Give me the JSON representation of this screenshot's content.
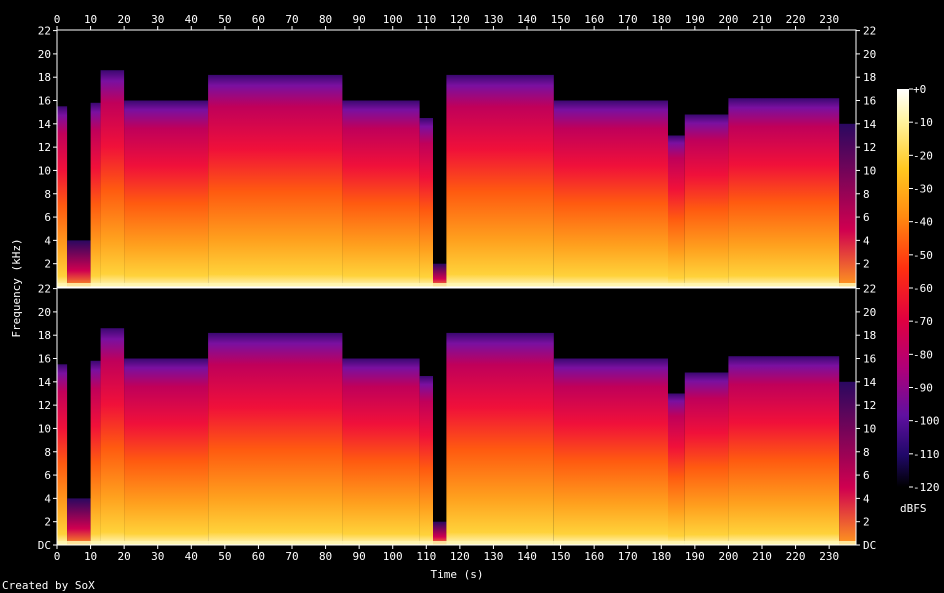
{
  "chart_data": {
    "type": "heatmap",
    "xlabel": "Time (s)",
    "ylabel": "Frequency (kHz)",
    "x_ticks": [
      0,
      10,
      20,
      30,
      40,
      50,
      60,
      70,
      80,
      90,
      100,
      110,
      120,
      130,
      140,
      150,
      160,
      170,
      180,
      190,
      200,
      210,
      220,
      230
    ],
    "xlim": [
      0,
      238
    ],
    "y_ticks": [
      {
        "value": 0,
        "label": "DC"
      },
      {
        "value": 2,
        "label": "2"
      },
      {
        "value": 4,
        "label": "4"
      },
      {
        "value": 6,
        "label": "6"
      },
      {
        "value": 8,
        "label": "8"
      },
      {
        "value": 10,
        "label": "10"
      },
      {
        "value": 12,
        "label": "12"
      },
      {
        "value": 14,
        "label": "14"
      },
      {
        "value": 16,
        "label": "16"
      },
      {
        "value": 18,
        "label": "18"
      },
      {
        "value": 20,
        "label": "20"
      },
      {
        "value": 22,
        "label": "22"
      }
    ],
    "ylim": [
      0,
      22.05
    ],
    "channels": 2,
    "colorbar": {
      "label": "dBFS",
      "ticks": [
        "+0",
        "-10",
        "-20",
        "-30",
        "-40",
        "-50",
        "-60",
        "-70",
        "-80",
        "-90",
        "-100",
        "-110",
        "-120"
      ],
      "range": [
        -120,
        0
      ]
    },
    "segments": [
      {
        "start": 0,
        "end": 3,
        "cutoff_khz": 15.5
      },
      {
        "start": 3,
        "end": 10,
        "cutoff_khz": 4.0,
        "quiet": true
      },
      {
        "start": 10,
        "end": 13,
        "cutoff_khz": 15.8
      },
      {
        "start": 13,
        "end": 20,
        "cutoff_khz": 18.6
      },
      {
        "start": 20,
        "end": 45,
        "cutoff_khz": 16.0
      },
      {
        "start": 45,
        "end": 85,
        "cutoff_khz": 18.2
      },
      {
        "start": 85,
        "end": 108,
        "cutoff_khz": 16.0
      },
      {
        "start": 108,
        "end": 112,
        "cutoff_khz": 14.5
      },
      {
        "start": 112,
        "end": 116,
        "cutoff_khz": 2.0,
        "quiet": true
      },
      {
        "start": 116,
        "end": 148,
        "cutoff_khz": 18.2
      },
      {
        "start": 148,
        "end": 182,
        "cutoff_khz": 16.0
      },
      {
        "start": 182,
        "end": 187,
        "cutoff_khz": 13.0
      },
      {
        "start": 187,
        "end": 200,
        "cutoff_khz": 14.8
      },
      {
        "start": 200,
        "end": 233,
        "cutoff_khz": 16.2
      },
      {
        "start": 233,
        "end": 238,
        "cutoff_khz": 14.0,
        "quiet": true
      }
    ]
  },
  "footer": {
    "created_by": "Created by SoX"
  }
}
